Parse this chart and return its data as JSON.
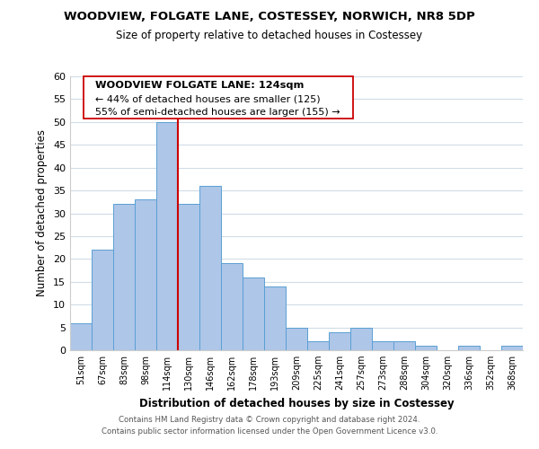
{
  "title": "WOODVIEW, FOLGATE LANE, COSTESSEY, NORWICH, NR8 5DP",
  "subtitle": "Size of property relative to detached houses in Costessey",
  "xlabel": "Distribution of detached houses by size in Costessey",
  "ylabel": "Number of detached properties",
  "bar_labels": [
    "51sqm",
    "67sqm",
    "83sqm",
    "98sqm",
    "114sqm",
    "130sqm",
    "146sqm",
    "162sqm",
    "178sqm",
    "193sqm",
    "209sqm",
    "225sqm",
    "241sqm",
    "257sqm",
    "273sqm",
    "288sqm",
    "304sqm",
    "320sqm",
    "336sqm",
    "352sqm",
    "368sqm"
  ],
  "bar_values": [
    6,
    22,
    32,
    33,
    50,
    32,
    36,
    19,
    16,
    14,
    5,
    2,
    4,
    5,
    2,
    2,
    1,
    0,
    1,
    0,
    1
  ],
  "bar_color": "#aec6e8",
  "bar_edge_color": "#5a9fd4",
  "vline_x": 4.5,
  "vline_color": "#cc0000",
  "ylim": [
    0,
    60
  ],
  "yticks": [
    0,
    5,
    10,
    15,
    20,
    25,
    30,
    35,
    40,
    45,
    50,
    55,
    60
  ],
  "annotation_title": "WOODVIEW FOLGATE LANE: 124sqm",
  "annotation_line1": "← 44% of detached houses are smaller (125)",
  "annotation_line2": "55% of semi-detached houses are larger (155) →",
  "footer_line1": "Contains HM Land Registry data © Crown copyright and database right 2024.",
  "footer_line2": "Contains public sector information licensed under the Open Government Licence v3.0.",
  "background_color": "#ffffff",
  "grid_color": "#d0dce8"
}
